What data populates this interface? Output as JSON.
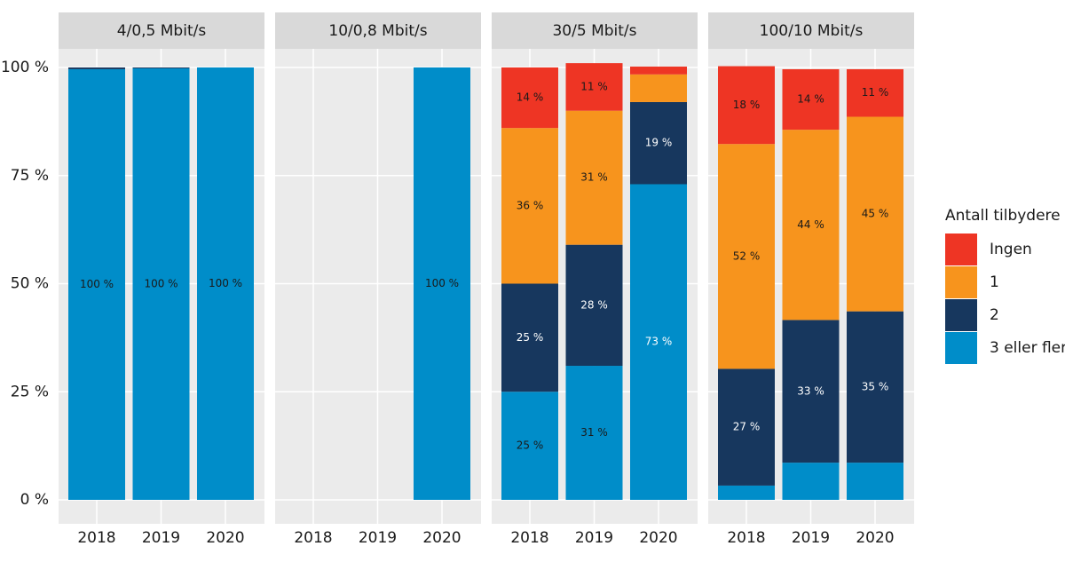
{
  "chart_data": {
    "type": "stacked-bar",
    "facets": [
      "4/0,5 Mbit/s",
      "10/0,8 Mbit/s",
      "30/5 Mbit/s",
      "100/10 Mbit/s"
    ],
    "categories": [
      "2018",
      "2019",
      "2020"
    ],
    "legend_title": "Antall tilbydere",
    "legend": "right",
    "grid": true,
    "ylim": [
      0,
      100
    ],
    "yticks": [
      {
        "value": 0,
        "label": "0 %"
      },
      {
        "value": 25,
        "label": "25 %"
      },
      {
        "value": 50,
        "label": "50 %"
      },
      {
        "value": 75,
        "label": "75 %"
      },
      {
        "value": 100,
        "label": "100 %"
      }
    ],
    "series": [
      {
        "name": "Ingen",
        "color": "#ee3524",
        "values": [
          [
            0,
            0,
            0
          ],
          [
            null,
            null,
            0
          ],
          [
            14,
            11,
            1.8
          ],
          [
            18,
            14,
            11
          ]
        ],
        "value_labels": [
          [
            null,
            null,
            null
          ],
          [
            null,
            null,
            null
          ],
          [
            "14 %",
            "11 %",
            null
          ],
          [
            "18 %",
            "14 %",
            "11 %"
          ]
        ]
      },
      {
        "name": "1",
        "color": "#f7941d",
        "values": [
          [
            0,
            0,
            0
          ],
          [
            null,
            null,
            0
          ],
          [
            36,
            31,
            6.4
          ],
          [
            52,
            44,
            45
          ]
        ],
        "value_labels": [
          [
            null,
            null,
            null
          ],
          [
            null,
            null,
            null
          ],
          [
            "36 %",
            "31 %",
            null
          ],
          [
            "52 %",
            "44 %",
            "45 %"
          ]
        ]
      },
      {
        "name": "2",
        "color": "#17375e",
        "values": [
          [
            0.4,
            0.2,
            0
          ],
          [
            null,
            null,
            0
          ],
          [
            25,
            28,
            19
          ],
          [
            27,
            33,
            35
          ]
        ],
        "value_labels": [
          [
            null,
            null,
            null
          ],
          [
            null,
            null,
            null
          ],
          [
            "25 %",
            "28 %",
            "19 %"
          ],
          [
            "27 %",
            "33 %",
            "35 %"
          ]
        ]
      },
      {
        "name": "3 eller fler",
        "color": "#008dc9",
        "values": [
          [
            99.6,
            99.8,
            100
          ],
          [
            null,
            null,
            100
          ],
          [
            25,
            31,
            73
          ],
          [
            3.3,
            8.6,
            8.6
          ]
        ],
        "value_labels": [
          [
            "100 %",
            "100 %",
            "100 %"
          ],
          [
            null,
            null,
            "100 %"
          ],
          [
            "25 %",
            "31 %",
            "73 %"
          ],
          [
            null,
            null,
            null
          ]
        ]
      }
    ]
  }
}
